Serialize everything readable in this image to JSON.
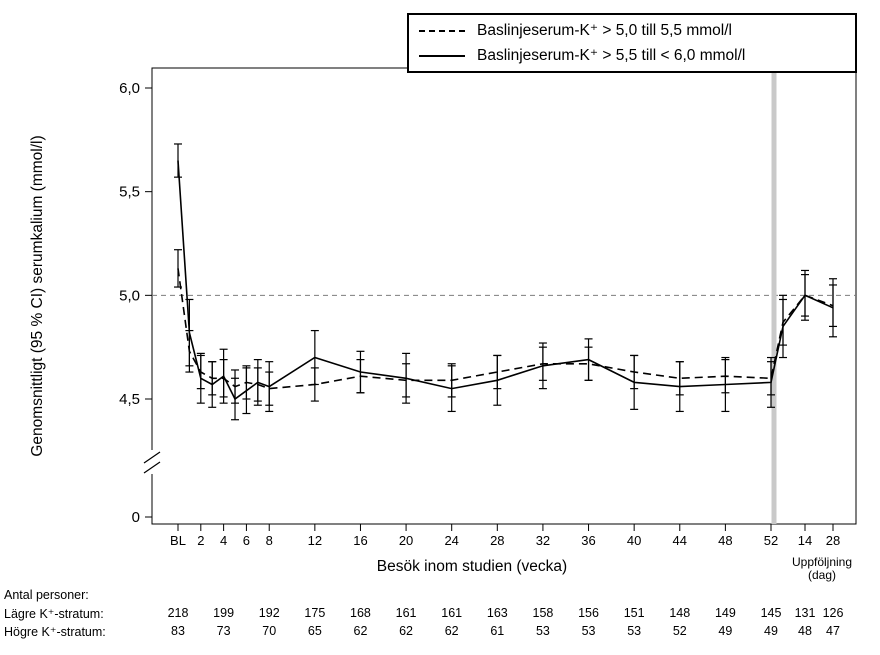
{
  "legend": {
    "items": [
      {
        "label": "Baslinjeserum-K⁺ > 5,0 till 5,5 mmol/l",
        "style": "dashed"
      },
      {
        "label": "Baslinjeserum-K⁺ > 5,5 till < 6,0 mmol/l",
        "style": "solid"
      }
    ]
  },
  "chart_data": {
    "type": "line",
    "title": "",
    "ylabel": "Genomsnittligt (95 % CI) serumkalium (mmol/l)",
    "xlabel": "Besök inom studien (vecka)",
    "followup_label_line1": "Uppföljning",
    "followup_label_line2": "(dag)",
    "reference_line_value": 5.0,
    "y_axis": {
      "break": true,
      "ticks": [
        {
          "label": "6,0",
          "value": 6.0
        },
        {
          "label": "5,5",
          "value": 5.5
        },
        {
          "label": "5,0",
          "value": 5.0
        },
        {
          "label": "4,5",
          "value": 4.5
        },
        {
          "label": "0",
          "value": 0
        }
      ]
    },
    "x_axis": {
      "week_ticks": [
        {
          "label": "BL",
          "week": 0
        },
        {
          "label": "2",
          "week": 2
        },
        {
          "label": "4",
          "week": 4
        },
        {
          "label": "6",
          "week": 6
        },
        {
          "label": "8",
          "week": 8
        },
        {
          "label": "12",
          "week": 12
        },
        {
          "label": "16",
          "week": 16
        },
        {
          "label": "20",
          "week": 20
        },
        {
          "label": "24",
          "week": 24
        },
        {
          "label": "28",
          "week": 28
        },
        {
          "label": "32",
          "week": 32
        },
        {
          "label": "36",
          "week": 36
        },
        {
          "label": "40",
          "week": 40
        },
        {
          "label": "44",
          "week": 44
        },
        {
          "label": "48",
          "week": 48
        },
        {
          "label": "52",
          "week": 52
        }
      ],
      "followup_ticks": [
        {
          "label": "14",
          "day": 14
        },
        {
          "label": "28",
          "day": 28
        }
      ]
    },
    "series": [
      {
        "name": "Baslinjeserum-K⁺ > 5,0 till 5,5 mmol/l",
        "style": "dashed",
        "points": [
          {
            "week": 0,
            "mean": 5.13,
            "lo": 5.04,
            "hi": 5.22
          },
          {
            "week": 1,
            "mean": 4.73,
            "lo": 4.63,
            "hi": 4.83
          },
          {
            "week": 2,
            "mean": 4.63,
            "lo": 4.55,
            "hi": 4.71
          },
          {
            "week": 3,
            "mean": 4.6,
            "lo": 4.52,
            "hi": 4.68
          },
          {
            "week": 4,
            "mean": 4.6,
            "lo": 4.51,
            "hi": 4.69
          },
          {
            "week": 5,
            "mean": 4.56,
            "lo": 4.48,
            "hi": 4.64
          },
          {
            "week": 6,
            "mean": 4.58,
            "lo": 4.5,
            "hi": 4.66
          },
          {
            "week": 7,
            "mean": 4.57,
            "lo": 4.49,
            "hi": 4.65
          },
          {
            "week": 8,
            "mean": 4.55,
            "lo": 4.47,
            "hi": 4.63
          },
          {
            "week": 12,
            "mean": 4.57,
            "lo": 4.49,
            "hi": 4.65
          },
          {
            "week": 16,
            "mean": 4.61,
            "lo": 4.53,
            "hi": 4.69
          },
          {
            "week": 20,
            "mean": 4.59,
            "lo": 4.51,
            "hi": 4.67
          },
          {
            "week": 24,
            "mean": 4.59,
            "lo": 4.51,
            "hi": 4.67
          },
          {
            "week": 28,
            "mean": 4.63,
            "lo": 4.55,
            "hi": 4.71
          },
          {
            "week": 32,
            "mean": 4.67,
            "lo": 4.59,
            "hi": 4.75
          },
          {
            "week": 36,
            "mean": 4.67,
            "lo": 4.59,
            "hi": 4.75
          },
          {
            "week": 40,
            "mean": 4.63,
            "lo": 4.55,
            "hi": 4.71
          },
          {
            "week": 44,
            "mean": 4.6,
            "lo": 4.52,
            "hi": 4.68
          },
          {
            "week": 48,
            "mean": 4.61,
            "lo": 4.53,
            "hi": 4.69
          },
          {
            "week": 52,
            "mean": 4.6,
            "lo": 4.52,
            "hi": 4.68
          },
          {
            "day": 3,
            "mean": 4.87,
            "lo": 4.76,
            "hi": 4.98
          },
          {
            "day": 14,
            "mean": 5.0,
            "lo": 4.9,
            "hi": 5.1
          },
          {
            "day": 28,
            "mean": 4.95,
            "lo": 4.85,
            "hi": 5.05
          }
        ]
      },
      {
        "name": "Baslinjeserum-K⁺ > 5,5 till < 6,0 mmol/l",
        "style": "solid",
        "points": [
          {
            "week": 0,
            "mean": 5.65,
            "lo": 5.57,
            "hi": 5.73
          },
          {
            "week": 1,
            "mean": 4.82,
            "lo": 4.66,
            "hi": 4.98
          },
          {
            "week": 2,
            "mean": 4.6,
            "lo": 4.48,
            "hi": 4.72
          },
          {
            "week": 3,
            "mean": 4.57,
            "lo": 4.46,
            "hi": 4.68
          },
          {
            "week": 4,
            "mean": 4.61,
            "lo": 4.48,
            "hi": 4.74
          },
          {
            "week": 5,
            "mean": 4.5,
            "lo": 4.4,
            "hi": 4.6
          },
          {
            "week": 6,
            "mean": 4.54,
            "lo": 4.43,
            "hi": 4.65
          },
          {
            "week": 7,
            "mean": 4.58,
            "lo": 4.47,
            "hi": 4.69
          },
          {
            "week": 8,
            "mean": 4.56,
            "lo": 4.44,
            "hi": 4.68
          },
          {
            "week": 12,
            "mean": 4.7,
            "lo": 4.57,
            "hi": 4.83
          },
          {
            "week": 16,
            "mean": 4.63,
            "lo": 4.53,
            "hi": 4.73
          },
          {
            "week": 20,
            "mean": 4.6,
            "lo": 4.48,
            "hi": 4.72
          },
          {
            "week": 24,
            "mean": 4.55,
            "lo": 4.44,
            "hi": 4.66
          },
          {
            "week": 28,
            "mean": 4.59,
            "lo": 4.47,
            "hi": 4.71
          },
          {
            "week": 32,
            "mean": 4.66,
            "lo": 4.55,
            "hi": 4.77
          },
          {
            "week": 36,
            "mean": 4.69,
            "lo": 4.59,
            "hi": 4.79
          },
          {
            "week": 40,
            "mean": 4.58,
            "lo": 4.45,
            "hi": 4.71
          },
          {
            "week": 44,
            "mean": 4.56,
            "lo": 4.44,
            "hi": 4.68
          },
          {
            "week": 48,
            "mean": 4.57,
            "lo": 4.44,
            "hi": 4.7
          },
          {
            "week": 52,
            "mean": 4.58,
            "lo": 4.46,
            "hi": 4.7
          },
          {
            "day": 3,
            "mean": 4.85,
            "lo": 4.7,
            "hi": 5.0
          },
          {
            "day": 14,
            "mean": 5.0,
            "lo": 4.88,
            "hi": 5.12
          },
          {
            "day": 28,
            "mean": 4.94,
            "lo": 4.8,
            "hi": 5.08
          }
        ]
      }
    ]
  },
  "table": {
    "title": "Antal personer:",
    "columns": [
      {
        "week": 0
      },
      {
        "week": 4
      },
      {
        "week": 8
      },
      {
        "week": 12
      },
      {
        "week": 16
      },
      {
        "week": 20
      },
      {
        "week": 24
      },
      {
        "week": 28
      },
      {
        "week": 32
      },
      {
        "week": 36
      },
      {
        "week": 40
      },
      {
        "week": 44
      },
      {
        "week": 48
      },
      {
        "week": 52
      },
      {
        "day": 14
      },
      {
        "day": 28
      }
    ],
    "rows": [
      {
        "label": "Lägre K⁺-stratum:",
        "values": [
          "218",
          "199",
          "192",
          "175",
          "168",
          "161",
          "161",
          "163",
          "158",
          "156",
          "151",
          "148",
          "149",
          "145",
          "131",
          "126"
        ]
      },
      {
        "label": "Högre K⁺-stratum:",
        "values": [
          "83",
          "73",
          "70",
          "65",
          "62",
          "62",
          "62",
          "61",
          "53",
          "53",
          "53",
          "52",
          "49",
          "49",
          "48",
          "47"
        ]
      }
    ]
  }
}
